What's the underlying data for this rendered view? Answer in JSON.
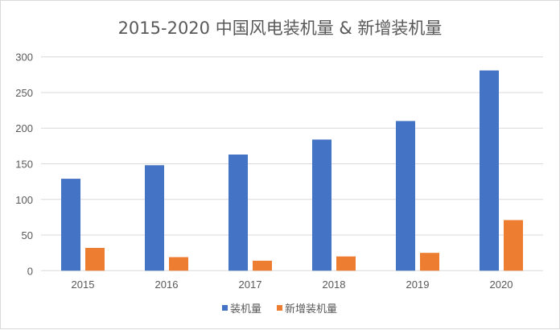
{
  "chart_data": {
    "type": "bar",
    "title": "2015-2020 中国风电装机量 & 新增装机量",
    "categories": [
      "2015",
      "2016",
      "2017",
      "2018",
      "2019",
      "2020"
    ],
    "series": [
      {
        "name": "装机量",
        "color": "#4472C4",
        "values": [
          129,
          148,
          163,
          184,
          210,
          281
        ]
      },
      {
        "name": "新增装机量",
        "color": "#ED7D31",
        "values": [
          32,
          19,
          14,
          20,
          25,
          71
        ]
      }
    ],
    "ylim": [
      0,
      300
    ],
    "yticks": [
      0,
      50,
      100,
      150,
      200,
      250,
      300
    ],
    "grid": true,
    "legend": "bottom"
  }
}
